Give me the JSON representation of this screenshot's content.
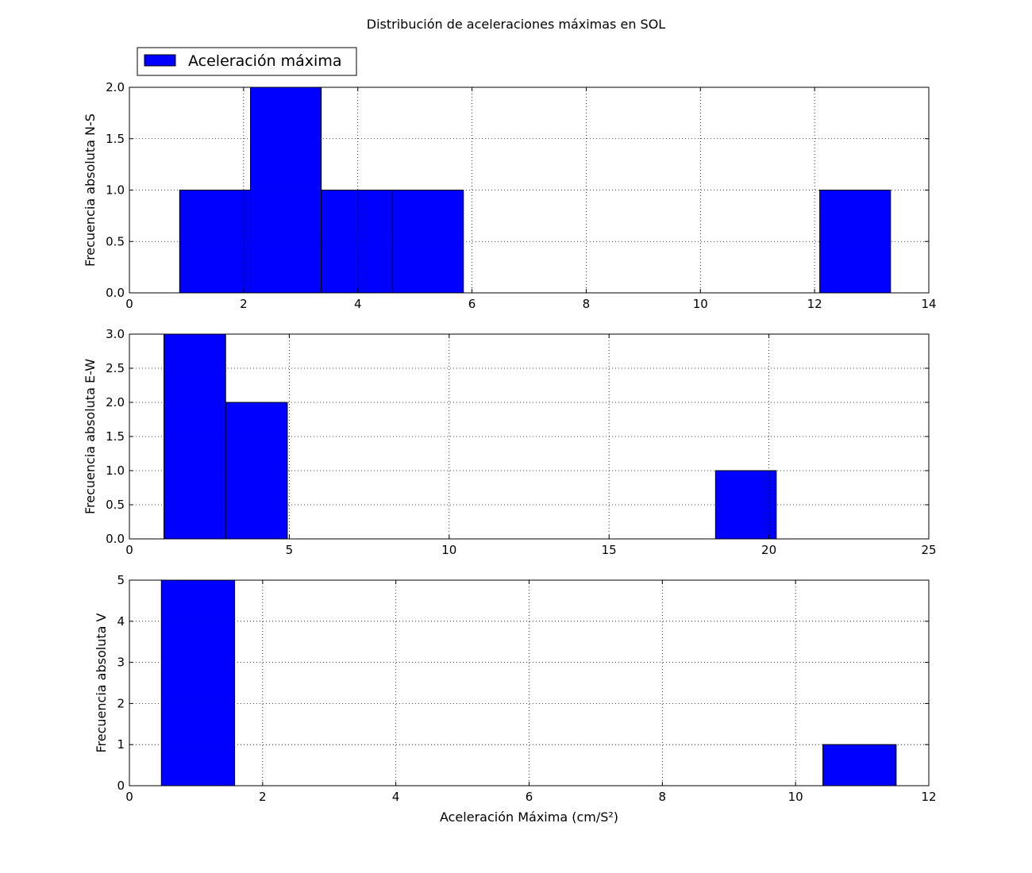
{
  "figure": {
    "title": "Distribución de aceleraciones máximas en SOL"
  },
  "legend": {
    "label": "Aceleración máxima",
    "placement": "upper-left",
    "color": "#0000ff"
  },
  "chart_data": [
    {
      "type": "bar",
      "ylabel": "Frecuencia absoluta N-S",
      "xlabel": "",
      "xlim": [
        0,
        14
      ],
      "ylim": [
        0,
        2.0
      ],
      "xticks": [
        "0",
        "2",
        "4",
        "6",
        "8",
        "10",
        "12",
        "14"
      ],
      "yticks": [
        "0.0",
        "0.5",
        "1.0",
        "1.5",
        "2.0"
      ],
      "grid": true,
      "color": "#0000ff",
      "bins": [
        {
          "x0": 0.88,
          "x1": 2.12,
          "value": 1
        },
        {
          "x0": 2.12,
          "x1": 3.36,
          "value": 2
        },
        {
          "x0": 3.36,
          "x1": 4.6,
          "value": 1
        },
        {
          "x0": 4.6,
          "x1": 5.85,
          "value": 1
        },
        {
          "x0": 12.09,
          "x1": 13.33,
          "value": 1
        }
      ]
    },
    {
      "type": "bar",
      "ylabel": "Frecuencia absoluta E-W",
      "xlabel": "",
      "xlim": [
        0,
        25
      ],
      "ylim": [
        0,
        3.0
      ],
      "xticks": [
        "0",
        "5",
        "10",
        "15",
        "20",
        "25"
      ],
      "yticks": [
        "0.0",
        "0.5",
        "1.0",
        "1.5",
        "2.0",
        "2.5",
        "3.0"
      ],
      "grid": true,
      "color": "#0000ff",
      "bins": [
        {
          "x0": 1.08,
          "x1": 3.01,
          "value": 3
        },
        {
          "x0": 3.01,
          "x1": 4.94,
          "value": 2
        },
        {
          "x0": 18.33,
          "x1": 20.23,
          "value": 1
        }
      ]
    },
    {
      "type": "bar",
      "ylabel": "Frecuencia absoluta V",
      "xlabel": "Aceleración Máxima (cm/S²)",
      "xlim": [
        0,
        12
      ],
      "ylim": [
        0,
        5
      ],
      "xticks": [
        "0",
        "2",
        "4",
        "6",
        "8",
        "10",
        "12"
      ],
      "yticks": [
        "0",
        "1",
        "2",
        "3",
        "4",
        "5"
      ],
      "grid": true,
      "color": "#0000ff",
      "bins": [
        {
          "x0": 0.48,
          "x1": 1.58,
          "value": 5
        },
        {
          "x0": 10.41,
          "x1": 11.51,
          "value": 1
        }
      ]
    }
  ]
}
